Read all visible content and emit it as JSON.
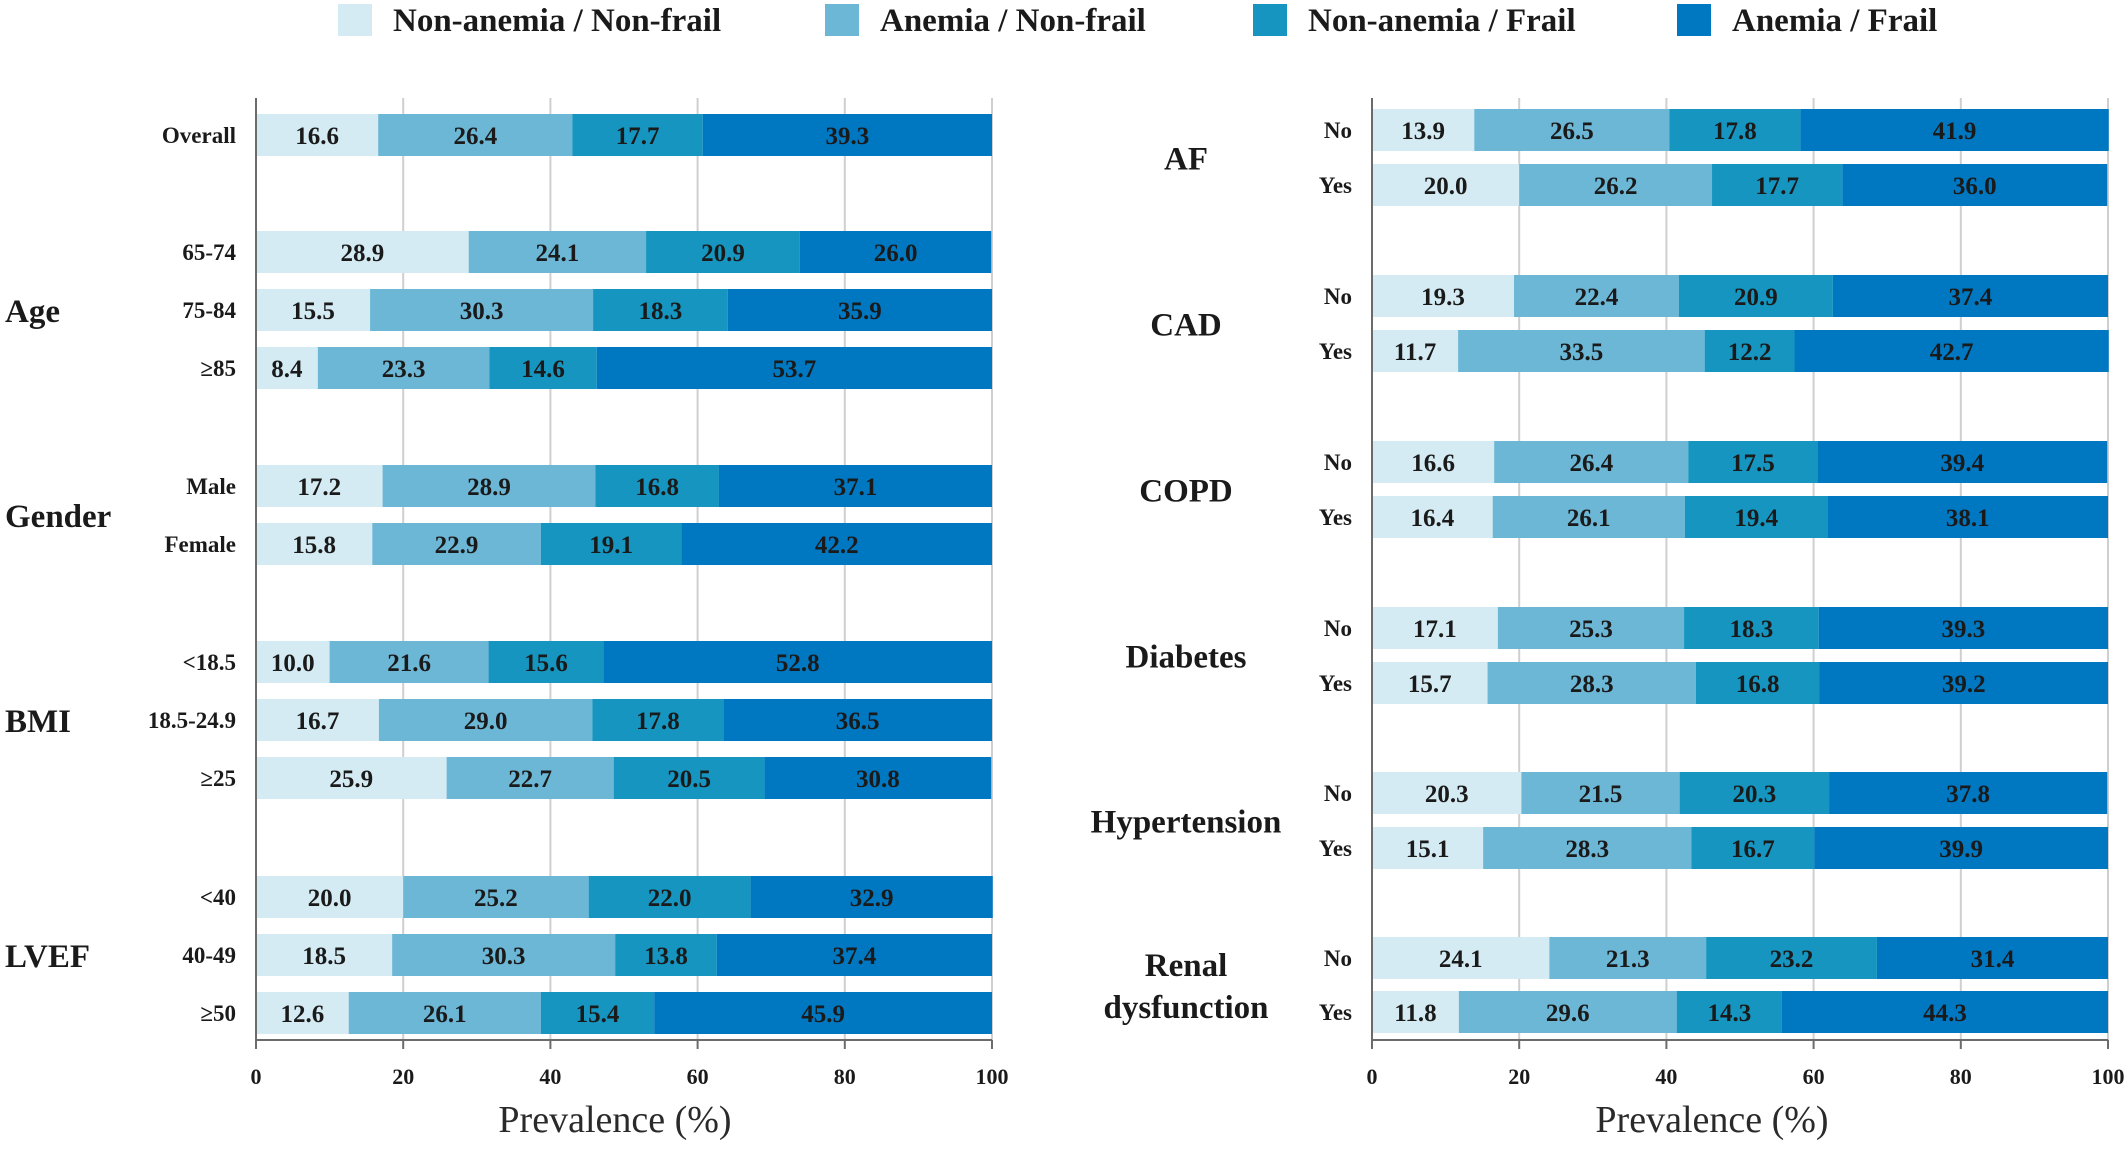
{
  "chart_data": {
    "type": "bar",
    "orientation": "horizontal",
    "stacked": true,
    "legend": {
      "position": "top",
      "entries": [
        "Non-anemia / Non-frail",
        "Anemia / Non-frail",
        "Non-anemia / Frail",
        "Anemia / Frail"
      ]
    },
    "colors": [
      "#d4ebf3",
      "#6cb6d6",
      "#1595bf",
      "#0077c1"
    ],
    "xlim": [
      0,
      100
    ],
    "xticks": [
      0,
      20,
      40,
      60,
      80,
      100
    ],
    "grid": "vertical",
    "panels": [
      {
        "xlabel": "Prevalence (%)",
        "groups": [
          {
            "label": "",
            "rows": [
              {
                "label": "Overall",
                "values": [
                  16.6,
                  26.4,
                  17.7,
                  39.3
                ]
              }
            ]
          },
          {
            "label": "Age",
            "rows": [
              {
                "label": "65-74",
                "values": [
                  28.9,
                  24.1,
                  20.9,
                  26.0
                ]
              },
              {
                "label": "75-84",
                "values": [
                  15.5,
                  30.3,
                  18.3,
                  35.9
                ]
              },
              {
                "label": "≥85",
                "values": [
                  8.4,
                  23.3,
                  14.6,
                  53.7
                ]
              }
            ]
          },
          {
            "label": "Gender",
            "rows": [
              {
                "label": "Male",
                "values": [
                  17.2,
                  28.9,
                  16.8,
                  37.1
                ]
              },
              {
                "label": "Female",
                "values": [
                  15.8,
                  22.9,
                  19.1,
                  42.2
                ]
              }
            ]
          },
          {
            "label": "BMI",
            "rows": [
              {
                "label": "<18.5",
                "values": [
                  10.0,
                  21.6,
                  15.6,
                  52.8
                ]
              },
              {
                "label": "18.5-24.9",
                "values": [
                  16.7,
                  29.0,
                  17.8,
                  36.5
                ]
              },
              {
                "label": "≥25",
                "values": [
                  25.9,
                  22.7,
                  20.5,
                  30.8
                ]
              }
            ]
          },
          {
            "label": "LVEF",
            "rows": [
              {
                "label": "<40",
                "values": [
                  20.0,
                  25.2,
                  22.0,
                  32.9
                ]
              },
              {
                "label": "40-49",
                "values": [
                  18.5,
                  30.3,
                  13.8,
                  37.4
                ]
              },
              {
                "label": "≥50",
                "values": [
                  12.6,
                  26.1,
                  15.4,
                  45.9
                ]
              }
            ]
          }
        ]
      },
      {
        "xlabel": "Prevalence (%)",
        "groups": [
          {
            "label": "AF",
            "rows": [
              {
                "label": "No",
                "values": [
                  13.9,
                  26.5,
                  17.8,
                  41.9
                ]
              },
              {
                "label": "Yes",
                "values": [
                  20.0,
                  26.2,
                  17.7,
                  36.0
                ]
              }
            ]
          },
          {
            "label": "CAD",
            "rows": [
              {
                "label": "No",
                "values": [
                  19.3,
                  22.4,
                  20.9,
                  37.4
                ]
              },
              {
                "label": "Yes",
                "values": [
                  11.7,
                  33.5,
                  12.2,
                  42.7
                ]
              }
            ]
          },
          {
            "label": "COPD",
            "rows": [
              {
                "label": "No",
                "values": [
                  16.6,
                  26.4,
                  17.5,
                  39.4
                ]
              },
              {
                "label": "Yes",
                "values": [
                  16.4,
                  26.1,
                  19.4,
                  38.1
                ]
              }
            ]
          },
          {
            "label": "Diabetes",
            "rows": [
              {
                "label": "No",
                "values": [
                  17.1,
                  25.3,
                  18.3,
                  39.3
                ]
              },
              {
                "label": "Yes",
                "values": [
                  15.7,
                  28.3,
                  16.8,
                  39.2
                ]
              }
            ]
          },
          {
            "label": "Hypertension",
            "rows": [
              {
                "label": "No",
                "values": [
                  20.3,
                  21.5,
                  20.3,
                  37.8
                ]
              },
              {
                "label": "Yes",
                "values": [
                  15.1,
                  28.3,
                  16.7,
                  39.9
                ]
              }
            ]
          },
          {
            "label": "Renal\ndysfunction",
            "rows": [
              {
                "label": "No",
                "values": [
                  24.1,
                  21.3,
                  23.2,
                  31.4
                ]
              },
              {
                "label": "Yes",
                "values": [
                  11.8,
                  29.6,
                  14.3,
                  44.3
                ]
              }
            ]
          }
        ]
      }
    ]
  }
}
